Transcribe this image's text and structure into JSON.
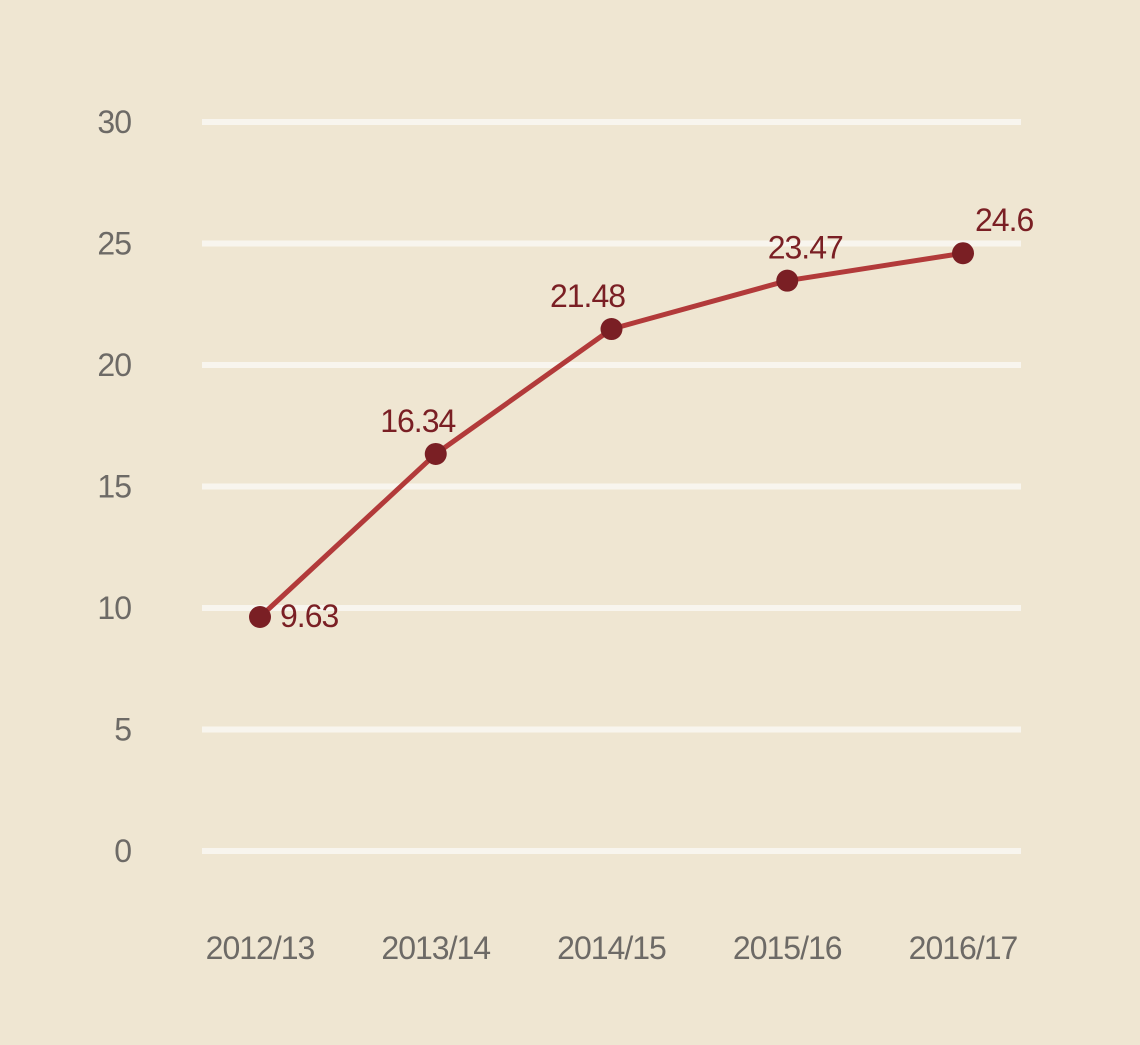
{
  "chart_data": {
    "type": "line",
    "title": "",
    "xlabel": "",
    "ylabel": "",
    "categories": [
      "2012/13",
      "2013/14",
      "2014/15",
      "2015/16",
      "2016/17"
    ],
    "series": [
      {
        "values": [
          9.63,
          16.34,
          21.48,
          23.47,
          24.6
        ],
        "data_labels": [
          "9.63",
          "16.34",
          "21.48",
          "23.47",
          "24.6"
        ]
      }
    ],
    "ylim": [
      0,
      30
    ],
    "yticks": [
      0,
      5,
      10,
      15,
      20,
      25,
      30
    ],
    "ytick_labels": [
      "0",
      "5",
      "10",
      "15",
      "20",
      "25",
      "30"
    ],
    "grid": true,
    "legend": "none"
  },
  "colors": {
    "background": "#efe6d2",
    "gridline": "#f8f5ee",
    "line": "#b23a3a",
    "marker": "#7a1f24",
    "data_label": "#7a1f24",
    "tick_label": "#6d6a66"
  }
}
